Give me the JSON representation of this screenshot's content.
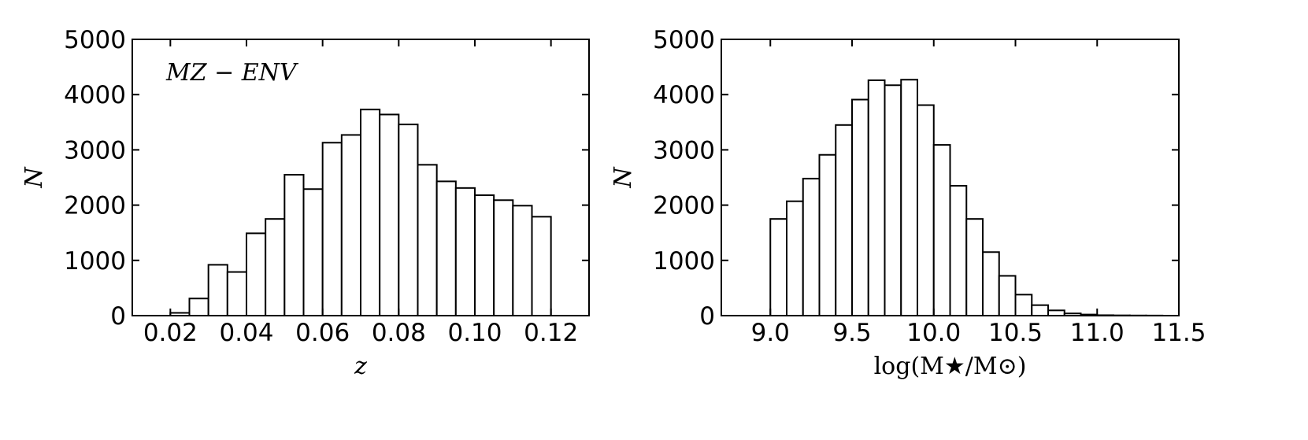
{
  "chart_data": [
    {
      "type": "bar",
      "xlabel": "z",
      "ylabel": "N",
      "annotation": "MZ − ENV",
      "xlim": [
        0.01,
        0.13
      ],
      "ylim": [
        0,
        5000
      ],
      "xticks": [
        "0.02",
        "0.04",
        "0.06",
        "0.08",
        "0.10",
        "0.12"
      ],
      "xtick_values": [
        0.02,
        0.04,
        0.06,
        0.08,
        0.1,
        0.12
      ],
      "yticks": [
        "0",
        "1000",
        "2000",
        "3000",
        "4000",
        "5000"
      ],
      "ytick_values": [
        0,
        1000,
        2000,
        3000,
        4000,
        5000
      ],
      "bin_edges": [
        0.02,
        0.025,
        0.03,
        0.035,
        0.04,
        0.045,
        0.05,
        0.055,
        0.06,
        0.065,
        0.07,
        0.075,
        0.08,
        0.085,
        0.09,
        0.095,
        0.1,
        0.105,
        0.11,
        0.115,
        0.12
      ],
      "values": [
        50,
        310,
        920,
        790,
        1490,
        1750,
        2550,
        2290,
        3130,
        3270,
        3730,
        3640,
        3460,
        2730,
        2430,
        2310,
        2180,
        2090,
        1990,
        1790
      ],
      "grid": false
    },
    {
      "type": "bar",
      "xlabel": "log(M★/M⊙)",
      "ylabel": "N",
      "xlim": [
        8.7,
        11.5
      ],
      "ylim": [
        0,
        5000
      ],
      "xticks": [
        "9.0",
        "9.5",
        "10.0",
        "10.5",
        "11.0",
        "11.5"
      ],
      "xtick_values": [
        9.0,
        9.5,
        10.0,
        10.5,
        11.0,
        11.5
      ],
      "yticks": [
        "0",
        "1000",
        "2000",
        "3000",
        "4000",
        "5000"
      ],
      "ytick_values": [
        0,
        1000,
        2000,
        3000,
        4000,
        5000
      ],
      "bin_edges": [
        9.0,
        9.1,
        9.2,
        9.3,
        9.4,
        9.5,
        9.6,
        9.7,
        9.8,
        9.9,
        10.0,
        10.1,
        10.2,
        10.3,
        10.4,
        10.5,
        10.6,
        10.7,
        10.8,
        10.9,
        11.0,
        11.1,
        11.2,
        11.3,
        11.4
      ],
      "values": [
        1750,
        2070,
        2480,
        2910,
        3450,
        3910,
        4260,
        4170,
        4270,
        3810,
        3090,
        2350,
        1750,
        1150,
        720,
        380,
        190,
        95,
        40,
        20,
        8,
        5,
        3,
        2
      ],
      "grid": false
    }
  ]
}
